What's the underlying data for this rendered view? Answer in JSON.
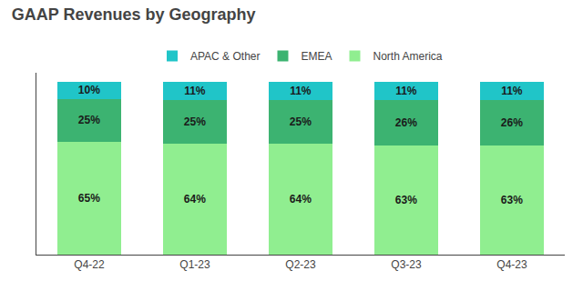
{
  "chart_data": {
    "type": "bar",
    "title": "GAAP Revenues by Geography",
    "categories": [
      "Q4-22",
      "Q1-23",
      "Q2-23",
      "Q3-23",
      "Q4-23"
    ],
    "series": [
      {
        "name": "North America",
        "color": "#90EE90",
        "values": [
          65,
          64,
          64,
          63,
          63
        ],
        "value_labels": [
          "65%",
          "64%",
          "64%",
          "63%",
          "63%"
        ]
      },
      {
        "name": "EMEA",
        "color": "#3CB371",
        "values": [
          25,
          25,
          25,
          26,
          26
        ],
        "value_labels": [
          "25%",
          "25%",
          "25%",
          "26%",
          "26%"
        ]
      },
      {
        "name": "APAC & Other",
        "color": "#20C5C8",
        "values": [
          10,
          11,
          11,
          11,
          11
        ],
        "value_labels": [
          "10%",
          "11%",
          "11%",
          "11%",
          "11%"
        ]
      }
    ],
    "stacked": true,
    "data_labels": true,
    "ylim": [
      0,
      105
    ],
    "yticks": [],
    "grid": false,
    "legend": "top",
    "tick_labels": "x"
  }
}
